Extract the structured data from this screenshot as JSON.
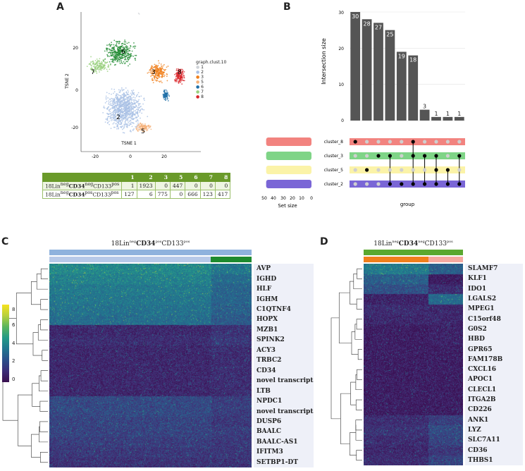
{
  "panels": {
    "a": "A",
    "b": "B",
    "c": "C",
    "d": "D"
  },
  "tsne": {
    "xlabel": "TSNE 1",
    "ylabel": "TSNE 2",
    "xticks": [
      "-20",
      "0",
      "20"
    ],
    "yticks": [
      "20",
      "0",
      "-20"
    ],
    "legend_title": "graph.clust.10",
    "legend": [
      "1",
      "2",
      "3",
      "5",
      "6",
      "7",
      "8"
    ],
    "cluster_labels": [
      "6",
      "7",
      "3",
      "8",
      "2",
      "5"
    ],
    "colors": {
      "c1": "#cfd3d8",
      "c2": "#a9c1e5",
      "c3": "#f07f1c",
      "c5": "#f5b27a",
      "c6": "#1f6fa8",
      "c7": "#9ad17f",
      "c8": "#d9262a",
      "c6g": "#1e8a2f"
    }
  },
  "table": {
    "header": [
      "",
      "1",
      "2",
      "3",
      "5",
      "6",
      "7",
      "8"
    ],
    "rows": [
      {
        "pre": "18Lin",
        "sup1": "neg",
        "bold": "CD34",
        "sup2": "neg",
        "post": "CD133",
        "sup3": "pos",
        "cells": [
          "1",
          "1923",
          "0",
          "447",
          "0",
          "0",
          "0"
        ]
      },
      {
        "pre": "18Lin",
        "sup1": "neg",
        "bold": "CD34",
        "sup2": "pos",
        "post": "CD133",
        "sup3": "pos",
        "cells": [
          "127",
          "6",
          "775",
          "0",
          "666",
          "123",
          "417"
        ]
      }
    ]
  },
  "chart_data": [
    {
      "type": "bar",
      "title": "",
      "ylabel": "Intersection size",
      "xlabel": "group",
      "ylim": [
        0,
        30
      ],
      "yticks": [
        "0",
        "10",
        "20",
        "30"
      ],
      "values": [
        30,
        28,
        27,
        25,
        19,
        18,
        3,
        1,
        1,
        1
      ],
      "value_labels": [
        "30",
        "28",
        "27",
        "25",
        "19",
        "18",
        "3",
        "1",
        "1",
        "1"
      ]
    },
    {
      "type": "bar",
      "title": "Set size",
      "xlabel": "Set size",
      "xticks": [
        "50",
        "40",
        "30",
        "20",
        "10",
        "0"
      ],
      "sets": [
        "cluster_8",
        "cluster_3",
        "cluster_5",
        "cluster_2"
      ],
      "set_colors": [
        "#f2837f",
        "#7fd487",
        "#fbf3a8",
        "#7a66d6"
      ],
      "values": [
        48,
        48,
        48,
        48
      ]
    }
  ],
  "upset_matrix": [
    [
      1,
      0,
      0,
      0,
      0,
      1,
      0,
      0,
      0,
      0
    ],
    [
      0,
      0,
      1,
      1,
      0,
      1,
      1,
      1,
      0,
      1
    ],
    [
      0,
      1,
      0,
      0,
      0,
      0,
      0,
      1,
      1,
      0
    ],
    [
      0,
      0,
      0,
      1,
      1,
      1,
      1,
      1,
      1,
      1
    ]
  ],
  "heatmap_c": {
    "title_pre": "18Lin",
    "title_sup1": "neg",
    "title_bold": "CD34",
    "title_sup2": "pos",
    "title_post": "CD133",
    "title_sup3": "pos",
    "genes": [
      "AVP",
      "IGHD",
      "HLF",
      "IGHM",
      "C1QTNF4",
      "HOPX",
      "MZB1",
      "SPINK2",
      "ACY3",
      "TRBC2",
      "CD34",
      "novel transcript",
      "LTB",
      "NPDC1",
      "novel transcript",
      "DUSP6",
      "BAALC",
      "BAALC-AS1",
      "IFITM3",
      "SETBP1-DT"
    ],
    "scale_ticks": [
      "8",
      "6",
      "4",
      "2",
      "0"
    ]
  },
  "heatmap_d": {
    "title_pre": "18Lin",
    "title_sup1": "neg",
    "title_bold": "CD34",
    "title_sup2": "neg",
    "title_post": "CD133",
    "title_sup3": "pos",
    "genes": [
      "SLAMF7",
      "KLF1",
      "IDO1",
      "LGALS2",
      "MPEG1",
      "C15orf48",
      "G0S2",
      "HBD",
      "GPR65",
      "FAM178B",
      "CXCL16",
      "APOC1",
      "CLECL1",
      "ITGA2B",
      "CD226",
      "ANK1",
      "LYZ",
      "SLC7A11",
      "CD36",
      "THBS1"
    ]
  }
}
